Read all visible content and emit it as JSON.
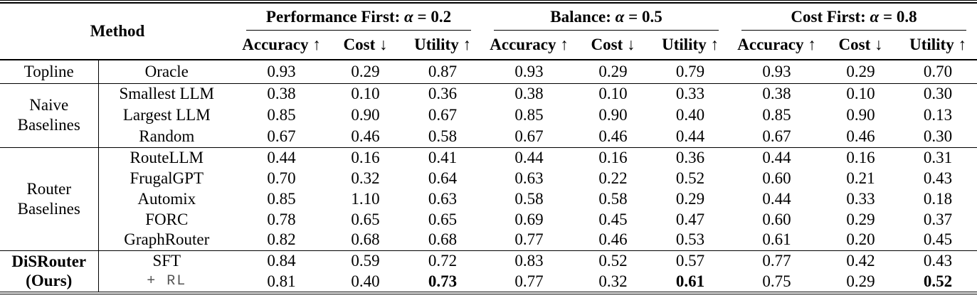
{
  "table": {
    "method_header": "Method",
    "groups": [
      {
        "title": "Performance First:",
        "alpha": "α",
        "value": "= 0.2",
        "columns": [
          "Accuracy ↑",
          "Cost ↓",
          "Utility ↑"
        ]
      },
      {
        "title": "Balance:",
        "alpha": "α",
        "value": "= 0.5",
        "columns": [
          "Accuracy ↑",
          "Cost ↓",
          "Utility ↑"
        ]
      },
      {
        "title": "Cost First:",
        "alpha": "α",
        "value": "= 0.8",
        "columns": [
          "Accuracy ↑",
          "Cost ↓",
          "Utility ↑"
        ]
      }
    ],
    "sections": [
      {
        "id": "topline",
        "group_label": [
          "Topline"
        ],
        "bold_label": false,
        "rows": [
          {
            "name": "Oracle",
            "values": [
              "0.93",
              "0.29",
              "0.87",
              "0.93",
              "0.29",
              "0.79",
              "0.93",
              "0.29",
              "0.70"
            ],
            "bold": []
          }
        ]
      },
      {
        "id": "naive",
        "group_label": [
          "Naive",
          "Baselines"
        ],
        "bold_label": false,
        "rows": [
          {
            "name": "Smallest LLM",
            "values": [
              "0.38",
              "0.10",
              "0.36",
              "0.38",
              "0.10",
              "0.33",
              "0.38",
              "0.10",
              "0.30"
            ],
            "bold": []
          },
          {
            "name": "Largest LLM",
            "values": [
              "0.85",
              "0.90",
              "0.67",
              "0.85",
              "0.90",
              "0.40",
              "0.85",
              "0.90",
              "0.13"
            ],
            "bold": []
          },
          {
            "name": "Random",
            "values": [
              "0.67",
              "0.46",
              "0.58",
              "0.67",
              "0.46",
              "0.44",
              "0.67",
              "0.46",
              "0.30"
            ],
            "bold": []
          }
        ]
      },
      {
        "id": "router",
        "group_label": [
          "Router",
          "Baselines"
        ],
        "bold_label": false,
        "rows": [
          {
            "name": "RouteLLM",
            "values": [
              "0.44",
              "0.16",
              "0.41",
              "0.44",
              "0.16",
              "0.36",
              "0.44",
              "0.16",
              "0.31"
            ],
            "bold": []
          },
          {
            "name": "FrugalGPT",
            "values": [
              "0.70",
              "0.32",
              "0.64",
              "0.63",
              "0.22",
              "0.52",
              "0.60",
              "0.21",
              "0.43"
            ],
            "bold": []
          },
          {
            "name": "Automix",
            "values": [
              "0.85",
              "1.10",
              "0.63",
              "0.58",
              "0.58",
              "0.29",
              "0.44",
              "0.33",
              "0.18"
            ],
            "bold": []
          },
          {
            "name": "FORC",
            "values": [
              "0.78",
              "0.65",
              "0.65",
              "0.69",
              "0.45",
              "0.47",
              "0.60",
              "0.29",
              "0.37"
            ],
            "bold": []
          },
          {
            "name": "GraphRouter",
            "values": [
              "0.82",
              "0.68",
              "0.68",
              "0.77",
              "0.46",
              "0.53",
              "0.61",
              "0.20",
              "0.45"
            ],
            "bold": []
          }
        ]
      },
      {
        "id": "disrouter",
        "group_label": [
          "DiSRouter",
          "(Ours)"
        ],
        "bold_label": true,
        "rows": [
          {
            "name": "SFT",
            "values": [
              "0.84",
              "0.59",
              "0.72",
              "0.83",
              "0.52",
              "0.57",
              "0.77",
              "0.42",
              "0.43"
            ],
            "bold": []
          },
          {
            "name": "+ RL",
            "mono": true,
            "values": [
              "0.81",
              "0.40",
              "0.73",
              "0.77",
              "0.32",
              "0.61",
              "0.75",
              "0.29",
              "0.52"
            ],
            "bold": [
              2,
              5,
              8
            ]
          }
        ]
      }
    ]
  }
}
